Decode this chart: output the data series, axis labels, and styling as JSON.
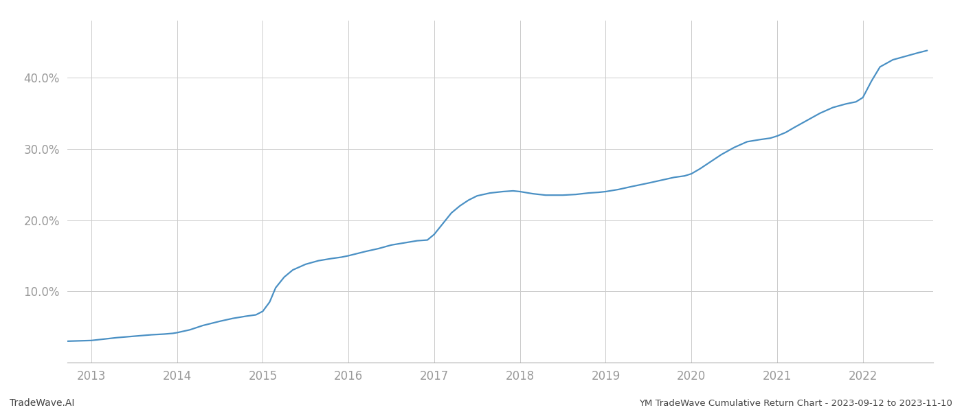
{
  "title": "YM TradeWave Cumulative Return Chart - 2023-09-12 to 2023-11-10",
  "watermark": "TradeWave.AI",
  "line_color": "#4a90c4",
  "background_color": "#ffffff",
  "grid_color": "#cccccc",
  "x_years": [
    2013,
    2014,
    2015,
    2016,
    2017,
    2018,
    2019,
    2020,
    2021,
    2022
  ],
  "data_x": [
    2012.72,
    2013.0,
    2013.15,
    2013.3,
    2013.5,
    2013.7,
    2013.85,
    2013.95,
    2014.0,
    2014.15,
    2014.3,
    2014.5,
    2014.65,
    2014.8,
    2014.92,
    2015.0,
    2015.08,
    2015.15,
    2015.25,
    2015.35,
    2015.5,
    2015.65,
    2015.8,
    2015.92,
    2016.0,
    2016.1,
    2016.2,
    2016.35,
    2016.5,
    2016.65,
    2016.8,
    2016.92,
    2017.0,
    2017.1,
    2017.2,
    2017.3,
    2017.4,
    2017.5,
    2017.65,
    2017.8,
    2017.92,
    2018.0,
    2018.15,
    2018.3,
    2018.5,
    2018.65,
    2018.8,
    2018.92,
    2019.0,
    2019.15,
    2019.3,
    2019.5,
    2019.65,
    2019.8,
    2019.92,
    2020.0,
    2020.1,
    2020.2,
    2020.35,
    2020.5,
    2020.65,
    2020.8,
    2020.92,
    2021.0,
    2021.1,
    2021.2,
    2021.35,
    2021.5,
    2021.65,
    2021.8,
    2021.92,
    2022.0,
    2022.1,
    2022.2,
    2022.35,
    2022.5,
    2022.65,
    2022.75
  ],
  "data_y": [
    3.0,
    3.1,
    3.3,
    3.5,
    3.7,
    3.9,
    4.0,
    4.1,
    4.2,
    4.6,
    5.2,
    5.8,
    6.2,
    6.5,
    6.7,
    7.2,
    8.5,
    10.5,
    12.0,
    13.0,
    13.8,
    14.3,
    14.6,
    14.8,
    15.0,
    15.3,
    15.6,
    16.0,
    16.5,
    16.8,
    17.1,
    17.2,
    18.0,
    19.5,
    21.0,
    22.0,
    22.8,
    23.4,
    23.8,
    24.0,
    24.1,
    24.0,
    23.7,
    23.5,
    23.5,
    23.6,
    23.8,
    23.9,
    24.0,
    24.3,
    24.7,
    25.2,
    25.6,
    26.0,
    26.2,
    26.5,
    27.2,
    28.0,
    29.2,
    30.2,
    31.0,
    31.3,
    31.5,
    31.8,
    32.3,
    33.0,
    34.0,
    35.0,
    35.8,
    36.3,
    36.6,
    37.2,
    39.5,
    41.5,
    42.5,
    43.0,
    43.5,
    43.8
  ],
  "ylim": [
    0,
    48
  ],
  "yticks": [
    10.0,
    20.0,
    30.0,
    40.0
  ],
  "xlim": [
    2012.72,
    2022.82
  ],
  "title_fontsize": 9.5,
  "watermark_fontsize": 10,
  "tick_label_color": "#999999",
  "tick_fontsize": 12,
  "line_width": 1.6
}
